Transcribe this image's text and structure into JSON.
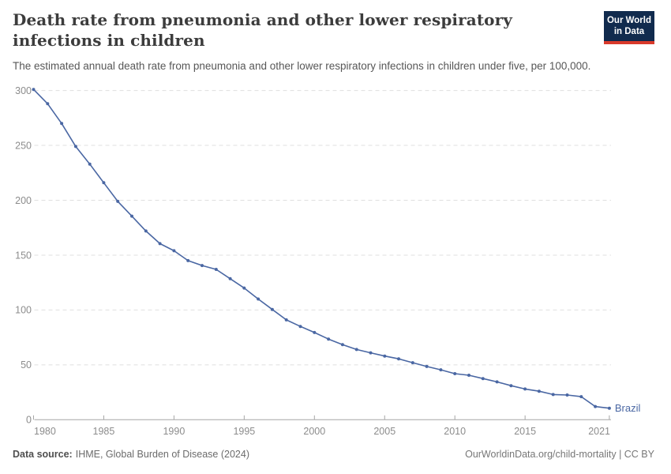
{
  "header": {
    "title": "Death rate from pneumonia and other lower respiratory infections in children",
    "subtitle": "The estimated annual death rate from pneumonia and other lower respiratory infections in children under five, per 100,000.",
    "logo": {
      "line1": "Our World",
      "line2": "in Data"
    }
  },
  "chart_data": {
    "type": "line",
    "x": [
      1980,
      1981,
      1982,
      1983,
      1984,
      1985,
      1986,
      1987,
      1988,
      1989,
      1990,
      1991,
      1992,
      1993,
      1994,
      1995,
      1996,
      1997,
      1998,
      1999,
      2000,
      2001,
      2002,
      2003,
      2004,
      2005,
      2006,
      2007,
      2008,
      2009,
      2010,
      2011,
      2012,
      2013,
      2014,
      2015,
      2016,
      2017,
      2018,
      2019,
      2020,
      2021
    ],
    "series": [
      {
        "name": "Brazil",
        "values": [
          301,
          288,
          270,
          249,
          233,
          216,
          199,
          185.5,
          172,
          160.5,
          154,
          145,
          140.5,
          137,
          128.5,
          120,
          110,
          100.5,
          91,
          85,
          79.5,
          73.5,
          68.5,
          64,
          61,
          58,
          55.5,
          52,
          48.5,
          45.5,
          42,
          40.5,
          37.5,
          34.5,
          31,
          28,
          26,
          23,
          22.5,
          21,
          12,
          10.5
        ]
      }
    ],
    "x_ticks": [
      1980,
      1985,
      1990,
      1995,
      2000,
      2005,
      2010,
      2015,
      2021
    ],
    "y_ticks": [
      0,
      50,
      100,
      150,
      200,
      250,
      300
    ],
    "xlim": [
      1980,
      2021
    ],
    "ylim": [
      0,
      300
    ],
    "grid": "horizontal-dashed",
    "legend": "line-end-label",
    "line_color": "#4a67a3",
    "xlabel": "",
    "ylabel": ""
  },
  "footer": {
    "source_label": "Data source:",
    "source_text": "IHME, Global Burden of Disease (2024)",
    "credit": "OurWorldinData.org/child-mortality | CC BY"
  },
  "colors": {
    "line": "#4a67a3",
    "logo_navy": "#112b4e",
    "logo_red": "#d93a2b",
    "tick_label_gray": "#8c8c8c",
    "gridline_gray": "#dfdfdf",
    "axis_gray": "#a6a6a6"
  }
}
